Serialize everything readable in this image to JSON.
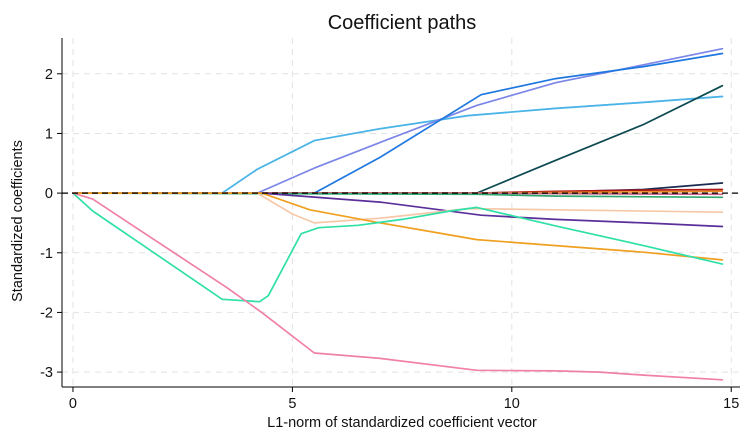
{
  "chart_data": {
    "type": "line",
    "title": "Coefficient paths",
    "xlabel": "L1-norm of standardized coefficient vector",
    "ylabel": "Standardized coefficients",
    "xlim": [
      -0.25,
      15.2
    ],
    "ylim": [
      -3.25,
      2.6
    ],
    "xticks": [
      0,
      5,
      10,
      15
    ],
    "yticks": [
      -3,
      -2,
      -1,
      0,
      1,
      2
    ],
    "grid": true,
    "legend": "none",
    "reference_line": {
      "y": 0,
      "style": "dashed"
    },
    "series": [
      {
        "color": "#a0d2f0",
        "values": [
          [
            0,
            0
          ],
          [
            3.4,
            0
          ],
          [
            4.2,
            0.4
          ],
          [
            5.5,
            0.88
          ],
          [
            7,
            1.08
          ],
          [
            9,
            1.3
          ],
          [
            11,
            1.42
          ],
          [
            13,
            1.52
          ],
          [
            14.8,
            1.62
          ]
        ]
      },
      {
        "color": "#4ab4e8",
        "values": [
          [
            0,
            0
          ],
          [
            3.4,
            0
          ],
          [
            4.2,
            0.4
          ],
          [
            5.5,
            0.88
          ],
          [
            7,
            1.08
          ],
          [
            9,
            1.3
          ],
          [
            11,
            1.42
          ],
          [
            13,
            1.52
          ],
          [
            14.8,
            1.62
          ]
        ]
      },
      {
        "color": "#7b86e8",
        "values": [
          [
            0,
            0
          ],
          [
            4.2,
            0
          ],
          [
            5.5,
            0.42
          ],
          [
            7,
            0.85
          ],
          [
            9.2,
            1.47
          ],
          [
            11,
            1.85
          ],
          [
            13,
            2.15
          ],
          [
            14.8,
            2.42
          ]
        ]
      },
      {
        "color": "#1f78e0",
        "values": [
          [
            0,
            0
          ],
          [
            5.5,
            0
          ],
          [
            7,
            0.6
          ],
          [
            9.3,
            1.65
          ],
          [
            11,
            1.92
          ],
          [
            13,
            2.12
          ],
          [
            14.8,
            2.34
          ]
        ]
      },
      {
        "color": "#0e4a52",
        "values": [
          [
            0,
            0
          ],
          [
            9.2,
            0
          ],
          [
            11,
            0.55
          ],
          [
            13,
            1.15
          ],
          [
            14.8,
            1.8
          ]
        ]
      },
      {
        "color": "#1a2a50",
        "values": [
          [
            0,
            0
          ],
          [
            9.2,
            0
          ],
          [
            11,
            0.02
          ],
          [
            13,
            0.06
          ],
          [
            14.8,
            0.17
          ]
        ]
      },
      {
        "color": "#b01818",
        "values": [
          [
            0,
            0
          ],
          [
            9.2,
            0
          ],
          [
            11,
            0.03
          ],
          [
            13,
            0.05
          ],
          [
            14.8,
            0.06
          ]
        ]
      },
      {
        "color": "#e88a20",
        "values": [
          [
            0,
            0
          ],
          [
            9.2,
            0
          ],
          [
            11,
            0.01
          ],
          [
            14.8,
            0.03
          ]
        ]
      },
      {
        "color": "#c86088",
        "values": [
          [
            0,
            0
          ],
          [
            9.2,
            0
          ],
          [
            11,
            -0.01
          ],
          [
            14.8,
            -0.02
          ]
        ]
      },
      {
        "color": "#30a870",
        "values": [
          [
            0,
            0
          ],
          [
            9.2,
            -0.02
          ],
          [
            11,
            -0.05
          ],
          [
            14.8,
            -0.07
          ]
        ]
      },
      {
        "color": "#5a2f9a",
        "values": [
          [
            0,
            0
          ],
          [
            4.3,
            0
          ],
          [
            5.2,
            -0.05
          ],
          [
            7,
            -0.15
          ],
          [
            9.3,
            -0.37
          ],
          [
            11,
            -0.44
          ],
          [
            13,
            -0.5
          ],
          [
            14.8,
            -0.56
          ]
        ]
      },
      {
        "color": "#f6c8a8",
        "values": [
          [
            0,
            0
          ],
          [
            4.2,
            0
          ],
          [
            5,
            -0.35
          ],
          [
            5.5,
            -0.5
          ],
          [
            7,
            -0.42
          ],
          [
            9,
            -0.26
          ],
          [
            11,
            -0.28
          ],
          [
            14.8,
            -0.32
          ]
        ]
      },
      {
        "color": "#f0a020",
        "values": [
          [
            0,
            0
          ],
          [
            4.3,
            0
          ],
          [
            5.4,
            -0.28
          ],
          [
            7,
            -0.5
          ],
          [
            9.2,
            -0.78
          ],
          [
            11,
            -0.88
          ],
          [
            13,
            -0.99
          ],
          [
            14.8,
            -1.12
          ]
        ]
      },
      {
        "color": "#30e0a8",
        "values": [
          [
            0,
            0
          ],
          [
            0.45,
            -0.3
          ],
          [
            3.4,
            -1.78
          ],
          [
            4.25,
            -1.82
          ],
          [
            4.45,
            -1.72
          ],
          [
            5.2,
            -0.68
          ],
          [
            5.6,
            -0.58
          ],
          [
            6.5,
            -0.54
          ],
          [
            7.5,
            -0.44
          ],
          [
            8.6,
            -0.3
          ],
          [
            9.2,
            -0.24
          ],
          [
            11,
            -0.55
          ],
          [
            13,
            -0.88
          ],
          [
            14.8,
            -1.19
          ]
        ]
      },
      {
        "color": "#f080a8",
        "values": [
          [
            0,
            0
          ],
          [
            0.45,
            -0.1
          ],
          [
            3.5,
            -1.58
          ],
          [
            4.3,
            -2.0
          ],
          [
            5.5,
            -2.68
          ],
          [
            7,
            -2.77
          ],
          [
            9.2,
            -2.97
          ],
          [
            11,
            -2.98
          ],
          [
            12,
            -3.0
          ],
          [
            13,
            -3.05
          ],
          [
            14.8,
            -3.13
          ]
        ]
      }
    ]
  }
}
